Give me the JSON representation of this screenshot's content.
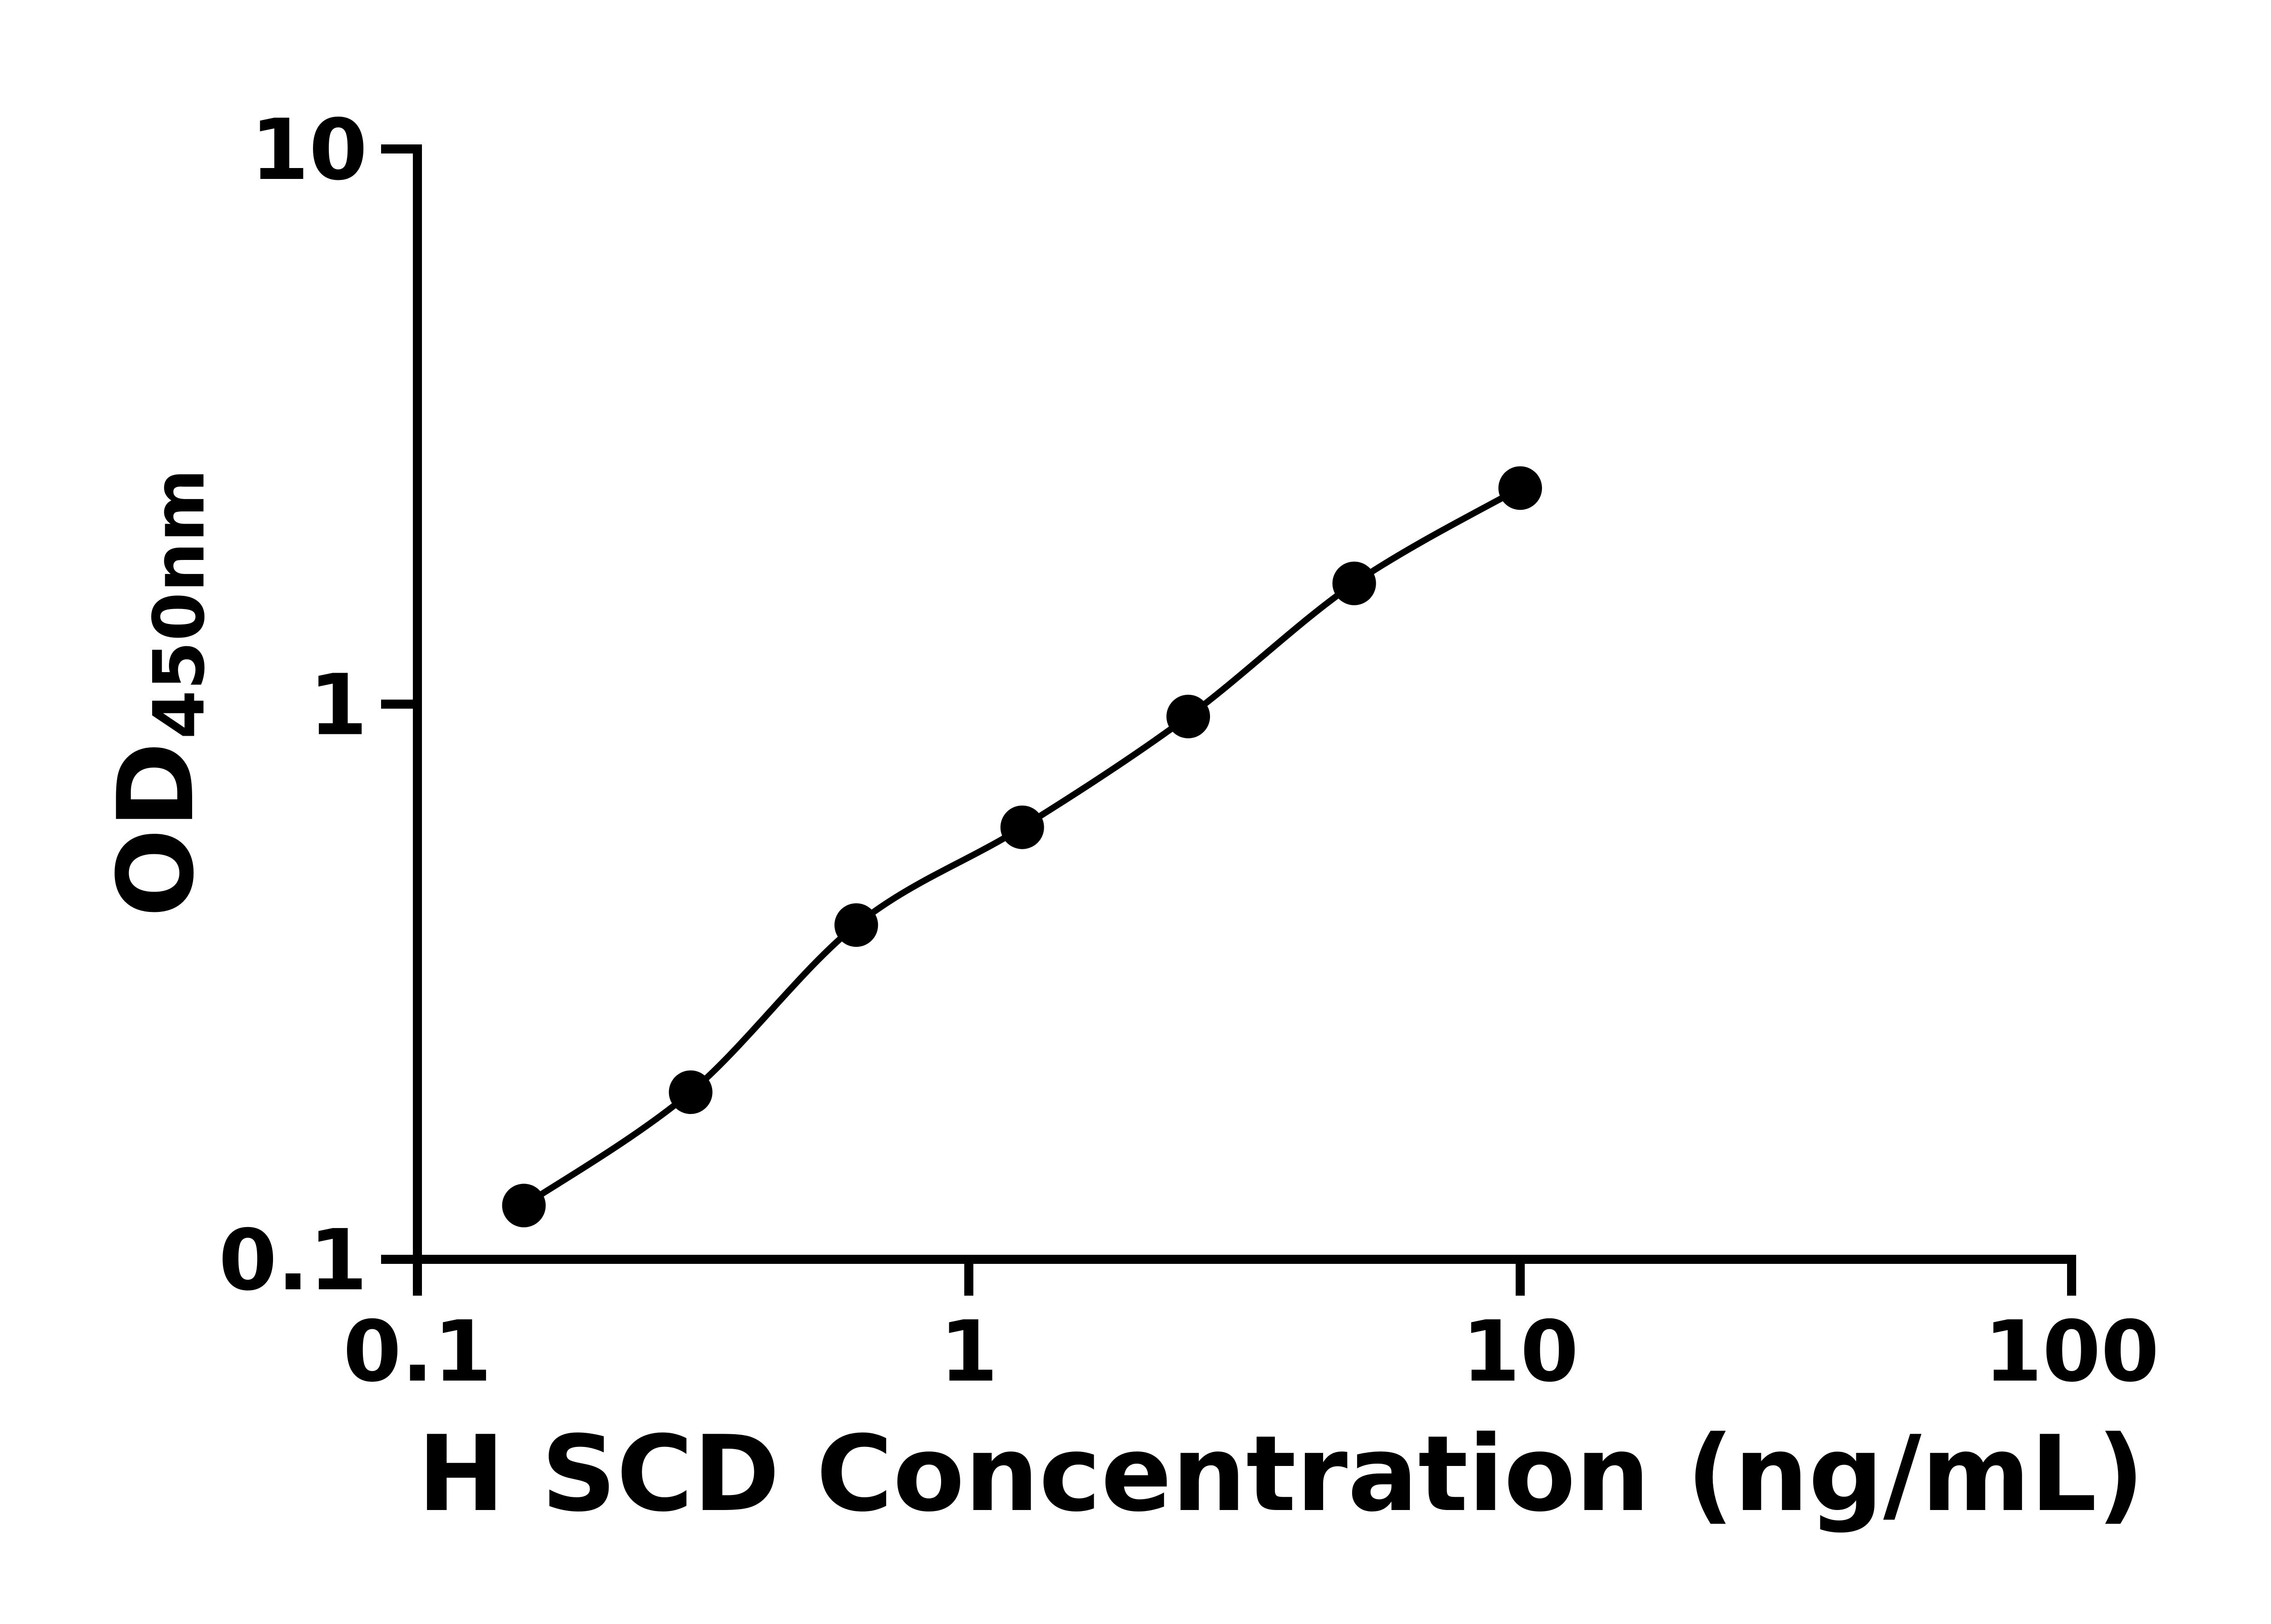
{
  "chart_data": {
    "type": "scatter",
    "title": "",
    "xlabel": "H SCD Concentration (ng/mL)",
    "ylabel": "OD",
    "ylabel_subscript": "450nm",
    "x_scale": "log",
    "y_scale": "log",
    "xlim": [
      0.1,
      100
    ],
    "ylim": [
      0.1,
      10
    ],
    "grid": false,
    "legend": "none",
    "x_ticks": [
      {
        "value": 0.1,
        "label": "0.1"
      },
      {
        "value": 1,
        "label": "1"
      },
      {
        "value": 10,
        "label": "10"
      },
      {
        "value": 100,
        "label": "100"
      }
    ],
    "y_ticks": [
      {
        "value": 0.1,
        "label": "0.1"
      },
      {
        "value": 1,
        "label": "1"
      },
      {
        "value": 10,
        "label": "10"
      }
    ],
    "series": [
      {
        "marker": "filled-circle",
        "color": "#000000",
        "line_color": "#000000",
        "points": [
          {
            "x": 0.156,
            "y": 0.125
          },
          {
            "x": 0.313,
            "y": 0.2
          },
          {
            "x": 0.625,
            "y": 0.4
          },
          {
            "x": 1.25,
            "y": 0.6
          },
          {
            "x": 2.5,
            "y": 0.95
          },
          {
            "x": 5,
            "y": 1.65
          },
          {
            "x": 10,
            "y": 2.45
          }
        ]
      }
    ]
  },
  "colors": {
    "background": "#ffffff",
    "axis": "#000000",
    "text": "#000000"
  }
}
